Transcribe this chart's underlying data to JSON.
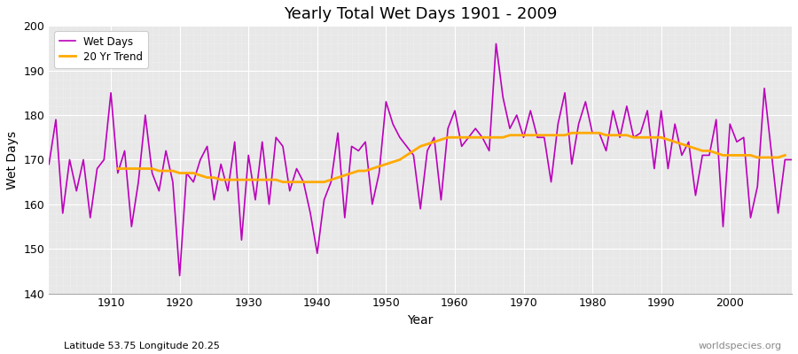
{
  "title": "Yearly Total Wet Days 1901 - 2009",
  "xlabel": "Year",
  "ylabel": "Wet Days",
  "ylim": [
    140,
    200
  ],
  "xlim": [
    1901,
    2009
  ],
  "subtitle": "Latitude 53.75 Longitude 20.25",
  "watermark": "worldspecies.org",
  "wet_days_color": "#bb00bb",
  "trend_color": "#ffaa00",
  "background_color": "#e8e8e8",
  "years": [
    1901,
    1902,
    1903,
    1904,
    1905,
    1906,
    1907,
    1908,
    1909,
    1910,
    1911,
    1912,
    1913,
    1914,
    1915,
    1916,
    1917,
    1918,
    1919,
    1920,
    1921,
    1922,
    1923,
    1924,
    1925,
    1926,
    1927,
    1928,
    1929,
    1930,
    1931,
    1932,
    1933,
    1934,
    1935,
    1936,
    1937,
    1938,
    1939,
    1940,
    1941,
    1942,
    1943,
    1944,
    1945,
    1946,
    1947,
    1948,
    1949,
    1950,
    1951,
    1952,
    1953,
    1954,
    1955,
    1956,
    1957,
    1958,
    1959,
    1960,
    1961,
    1962,
    1963,
    1964,
    1965,
    1966,
    1967,
    1968,
    1969,
    1970,
    1971,
    1972,
    1973,
    1974,
    1975,
    1976,
    1977,
    1978,
    1979,
    1980,
    1981,
    1982,
    1983,
    1984,
    1985,
    1986,
    1987,
    1988,
    1989,
    1990,
    1991,
    1992,
    1993,
    1994,
    1995,
    1996,
    1997,
    1998,
    1999,
    2000,
    2001,
    2002,
    2003,
    2004,
    2005,
    2006,
    2007,
    2008,
    2009
  ],
  "wet_days": [
    169,
    179,
    158,
    170,
    163,
    170,
    157,
    168,
    170,
    185,
    167,
    172,
    155,
    165,
    180,
    167,
    163,
    172,
    165,
    144,
    167,
    165,
    170,
    173,
    161,
    169,
    163,
    174,
    152,
    171,
    161,
    174,
    160,
    175,
    173,
    163,
    168,
    165,
    158,
    149,
    161,
    165,
    176,
    157,
    173,
    172,
    174,
    160,
    167,
    183,
    178,
    175,
    173,
    171,
    159,
    172,
    175,
    161,
    177,
    181,
    173,
    175,
    177,
    175,
    172,
    196,
    184,
    177,
    180,
    175,
    181,
    175,
    175,
    165,
    178,
    185,
    169,
    178,
    183,
    176,
    176,
    172,
    181,
    175,
    182,
    175,
    176,
    181,
    168,
    181,
    168,
    178,
    171,
    174,
    162,
    171,
    171,
    179,
    155,
    178,
    174,
    175,
    157,
    164,
    186,
    172,
    158,
    170,
    170
  ],
  "trend_years": [
    1911,
    1912,
    1913,
    1914,
    1915,
    1916,
    1917,
    1918,
    1919,
    1920,
    1921,
    1922,
    1923,
    1924,
    1925,
    1926,
    1927,
    1928,
    1929,
    1930,
    1931,
    1932,
    1933,
    1934,
    1935,
    1936,
    1937,
    1938,
    1939,
    1940,
    1941,
    1942,
    1943,
    1944,
    1945,
    1946,
    1947,
    1948,
    1949,
    1950,
    1951,
    1952,
    1953,
    1954,
    1955,
    1956,
    1957,
    1958,
    1959,
    1960,
    1961,
    1962,
    1963,
    1964,
    1965,
    1966,
    1967,
    1968,
    1969,
    1970,
    1971,
    1972,
    1973,
    1974,
    1975,
    1976,
    1977,
    1978,
    1979,
    1980,
    1981,
    1982,
    1983,
    1984,
    1985,
    1986,
    1987,
    1988,
    1989,
    1990,
    1991,
    1992,
    1993,
    1994,
    1995,
    1996,
    1997,
    1998,
    1999,
    2000,
    2001,
    2002,
    2003,
    2004,
    2005,
    2006,
    2007,
    2008
  ],
  "trend_values": [
    168.0,
    168.0,
    168.0,
    168.0,
    168.0,
    168.0,
    167.5,
    167.5,
    167.5,
    167.0,
    167.0,
    167.0,
    166.5,
    166.0,
    166.0,
    165.5,
    165.5,
    165.5,
    165.5,
    165.5,
    165.5,
    165.5,
    165.5,
    165.5,
    165.0,
    165.0,
    165.0,
    165.0,
    165.0,
    165.0,
    165.0,
    165.5,
    166.0,
    166.5,
    167.0,
    167.5,
    167.5,
    168.0,
    168.5,
    169.0,
    169.5,
    170.0,
    171.0,
    172.0,
    173.0,
    173.5,
    174.0,
    174.5,
    175.0,
    175.0,
    175.0,
    175.0,
    175.0,
    175.0,
    175.0,
    175.0,
    175.0,
    175.5,
    175.5,
    175.5,
    175.5,
    175.5,
    175.5,
    175.5,
    175.5,
    175.5,
    176.0,
    176.0,
    176.0,
    176.0,
    176.0,
    175.5,
    175.5,
    175.5,
    175.5,
    175.0,
    175.0,
    175.0,
    175.0,
    175.0,
    174.5,
    174.0,
    173.5,
    173.0,
    172.5,
    172.0,
    172.0,
    171.5,
    171.0,
    171.0,
    171.0,
    171.0,
    171.0,
    170.5,
    170.5,
    170.5,
    170.5,
    171.0
  ]
}
